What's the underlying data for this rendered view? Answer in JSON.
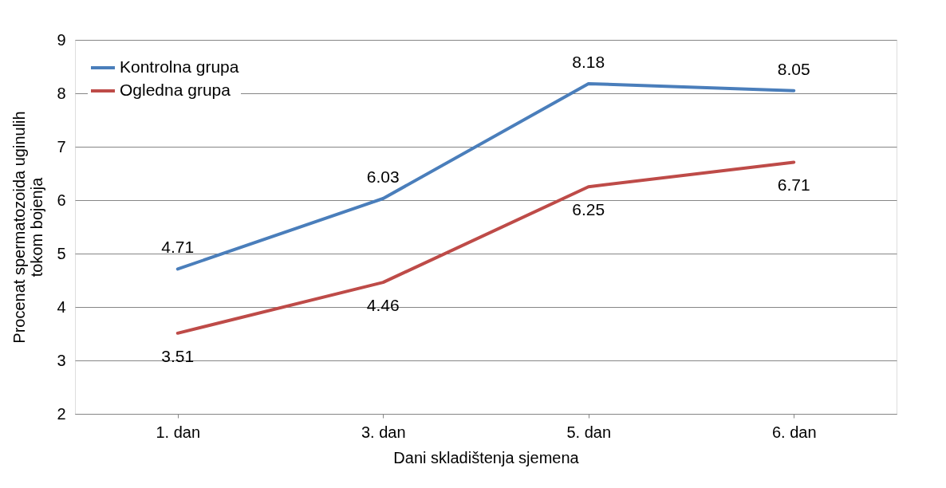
{
  "chart_data": {
    "type": "line",
    "xlabel": "Dani skladištenja sjemena",
    "ylabel": "Procenat spermatozoida uginulih\ntokom bojenja",
    "categories": [
      "1. dan",
      "3. dan",
      "5. dan",
      "6. dan"
    ],
    "series": [
      {
        "name": "Kontrolna grupa",
        "color": "#4a7ebb",
        "values": [
          4.71,
          6.03,
          8.18,
          8.05
        ]
      },
      {
        "name": "Ogledna grupa",
        "color": "#be4b48",
        "values": [
          3.51,
          4.46,
          6.25,
          6.71
        ]
      }
    ],
    "ylim": [
      2,
      9
    ],
    "yticks": [
      2,
      3,
      4,
      5,
      6,
      7,
      8,
      9
    ],
    "grid": "y",
    "legend": "top left",
    "data_labels": true
  }
}
